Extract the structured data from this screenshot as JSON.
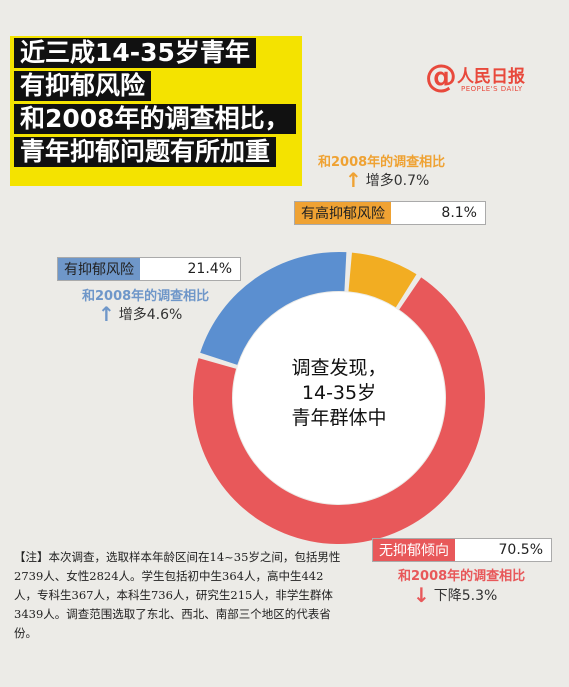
{
  "title_lines": [
    "近三成14-35岁青年",
    "有抑郁风险",
    "和2008年的调查相比，",
    "青年抑郁问题有所加重"
  ],
  "logo": {
    "symbol": "@",
    "cn": "人民日报",
    "en": "PEOPLE'S DAILY"
  },
  "colors": {
    "accent_yellow": "#f4e300",
    "orange": "#f2ad22",
    "blue": "#5b8fd0",
    "red": "#e8585a",
    "muted_orange": "#efa233",
    "muted_blue": "#6f97c9",
    "muted_red": "#e8585a"
  },
  "center_text": [
    "调查发现，",
    "14-35岁",
    "青年群体中"
  ],
  "chart_data": {
    "type": "pie",
    "style": "donut",
    "slices": [
      {
        "category": "有高抑郁风险",
        "value": 8.1,
        "value_label": "8.1%",
        "compare": "和2008年的调查相比",
        "direction": "up",
        "change": "增多0.7%",
        "color": "#f2ad22"
      },
      {
        "category": "有抑郁风险",
        "value": 21.4,
        "value_label": "21.4%",
        "compare": "和2008年的调查相比",
        "direction": "up",
        "change": "增多4.6%",
        "color": "#5b8fd0"
      },
      {
        "category": "无抑郁倾向",
        "value": 70.5,
        "value_label": "70.5%",
        "compare": "和2008年的调查相比",
        "direction": "down",
        "change": "下降5.3%",
        "color": "#e8585a"
      }
    ]
  },
  "note": "【注】本次调查，选取样本年龄区间在14~35岁之间，包括男性2739人、女性2824人。学生包括初中生364人，高中生442人，专科生367人，本科生736人，研究生215人，非学生群体3439人。调查范围选取了东北、西北、南部三个地区的代表省份。"
}
